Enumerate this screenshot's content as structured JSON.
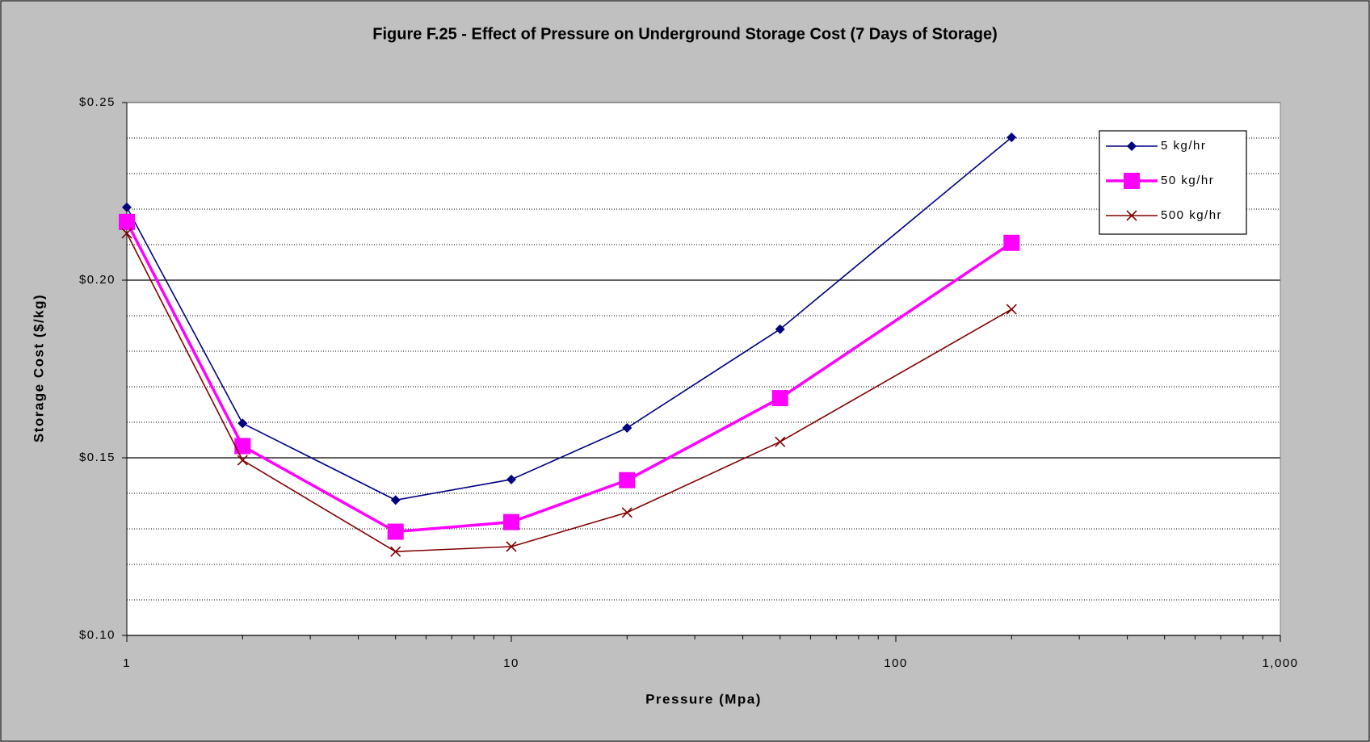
{
  "chart_data": {
    "type": "line",
    "title": "Figure F.25 - Effect of Pressure on Underground Storage Cost (7 Days of Storage)",
    "x_label": "Pressure (Mpa)",
    "y_label": "Storage Cost ($/kg)",
    "x": [
      1,
      2,
      5,
      10,
      20,
      50,
      200
    ],
    "series": [
      {
        "name": "5 kg/hr",
        "color": "#000080",
        "marker": "diamond",
        "values": [
          0.2205,
          0.1597,
          0.1381,
          0.1439,
          0.1584,
          0.1862,
          0.2402
        ]
      },
      {
        "name": "50 kg/hr",
        "color": "#ff00ff",
        "marker": "square",
        "values": [
          0.2164,
          0.1533,
          0.1292,
          0.1319,
          0.1437,
          0.1668,
          0.2105
        ]
      },
      {
        "name": "500 kg/hr",
        "color": "#800000",
        "marker": "x",
        "values": [
          0.2132,
          0.1493,
          0.1236,
          0.125,
          0.1346,
          0.1545,
          0.1918
        ]
      }
    ],
    "xlog": true,
    "xlim": [
      1,
      1000
    ],
    "xticks": [
      1,
      10,
      100,
      {
        "value": 1000,
        "label": "1,000"
      }
    ],
    "minor_xticks": [
      2,
      3,
      4,
      5,
      6,
      7,
      8,
      9,
      20,
      30,
      40,
      50,
      60,
      70,
      80,
      90,
      200,
      300,
      400,
      500,
      600,
      700,
      800,
      900
    ],
    "ylim": [
      0.1,
      0.25
    ],
    "yticks": [
      {
        "value": 0.1,
        "label": "$0.10"
      },
      {
        "value": 0.15,
        "label": "$0.15"
      },
      {
        "value": 0.2,
        "label": "$0.20"
      },
      {
        "value": 0.25,
        "label": "$0.25"
      }
    ],
    "minor_yticks": [
      0.11,
      0.12,
      0.13,
      0.14,
      0.16,
      0.17,
      0.18,
      0.19,
      0.21,
      0.22,
      0.23,
      0.24
    ],
    "grid": true,
    "legend": "top-right"
  }
}
